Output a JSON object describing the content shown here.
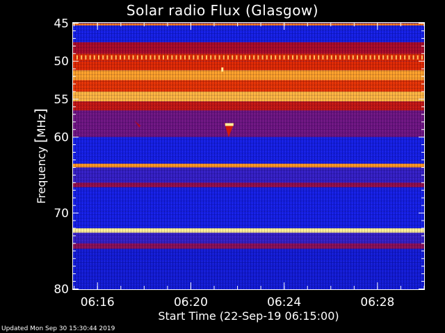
{
  "chart_data": {
    "type": "heatmap",
    "title": "Solar radio Flux (Glasgow)",
    "xlabel": "Start Time (22-Sep-19 06:15:00)",
    "ylabel_text": "Frequency ",
    "ylabel_unit": "MHz",
    "xlim_minutes": [
      6.25,
      6.5
    ],
    "x_start_time": "06:15",
    "xticks": [
      {
        "label": "06:16",
        "minutes_after_start": 1
      },
      {
        "label": "06:20",
        "minutes_after_start": 5
      },
      {
        "label": "06:24",
        "minutes_after_start": 9
      },
      {
        "label": "06:28",
        "minutes_after_start": 13
      }
    ],
    "x_range_minutes_after_start": [
      -0.05,
      15
    ],
    "ylim": [
      45,
      80
    ],
    "yticks": [
      45,
      50,
      55,
      60,
      70,
      80
    ],
    "y_reversed": true,
    "bands": [
      {
        "from": 45.0,
        "to": 45.3,
        "level": 0.75
      },
      {
        "from": 45.3,
        "to": 47.5,
        "level": 0.12
      },
      {
        "from": 47.5,
        "to": 49.0,
        "level": 0.45
      },
      {
        "from": 49.0,
        "to": 50.0,
        "level": 0.6
      },
      {
        "from": 50.0,
        "to": 51.2,
        "level": 0.6
      },
      {
        "from": 51.2,
        "to": 52.5,
        "level": 0.82
      },
      {
        "from": 52.5,
        "to": 54.0,
        "level": 0.62
      },
      {
        "from": 54.0,
        "to": 55.3,
        "level": 0.85
      },
      {
        "from": 55.3,
        "to": 56.5,
        "level": 0.52
      },
      {
        "from": 56.5,
        "to": 60.0,
        "level": 0.32
      },
      {
        "from": 60.0,
        "to": 63.5,
        "level": 0.12
      },
      {
        "from": 63.5,
        "to": 64.0,
        "level": 0.8
      },
      {
        "from": 64.0,
        "to": 66.0,
        "level": 0.2
      },
      {
        "from": 66.0,
        "to": 66.6,
        "level": 0.4
      },
      {
        "from": 66.6,
        "to": 72.0,
        "level": 0.12
      },
      {
        "from": 72.0,
        "to": 72.6,
        "level": 0.95
      },
      {
        "from": 72.6,
        "to": 74.0,
        "level": 0.2
      },
      {
        "from": 74.0,
        "to": 74.7,
        "level": 0.38
      },
      {
        "from": 74.7,
        "to": 80.0,
        "level": 0.1
      }
    ],
    "bursts": [
      {
        "minute": 6.65,
        "freq": 58.8,
        "level": 0.95
      },
      {
        "minute": 2.7,
        "freq": 58.3,
        "level": 0.45
      },
      {
        "minute": 6.35,
        "freq": 51.1,
        "level": 0.95
      }
    ]
  },
  "footer": "Updated Mon Sep 30 15:30:44 2019"
}
